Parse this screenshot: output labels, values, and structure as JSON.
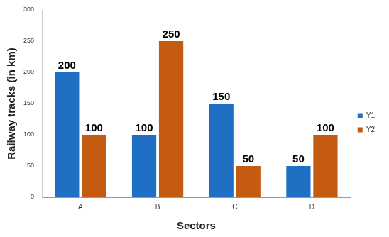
{
  "chart_data": {
    "type": "bar",
    "categories": [
      "A",
      "B",
      "C",
      "D"
    ],
    "series": [
      {
        "name": "Y1",
        "color": "#1f6fc5",
        "values": [
          200,
          100,
          150,
          50
        ]
      },
      {
        "name": "Y2",
        "color": "#c55a11",
        "values": [
          100,
          250,
          50,
          100
        ]
      }
    ],
    "x_label": "Sectors",
    "y_label": "Railway tracks (in km)",
    "ylim": [
      0,
      300
    ],
    "yticks": [
      0,
      50,
      100,
      150,
      200,
      250,
      300
    ],
    "grid": false,
    "legend": "right",
    "data_labels": true
  }
}
